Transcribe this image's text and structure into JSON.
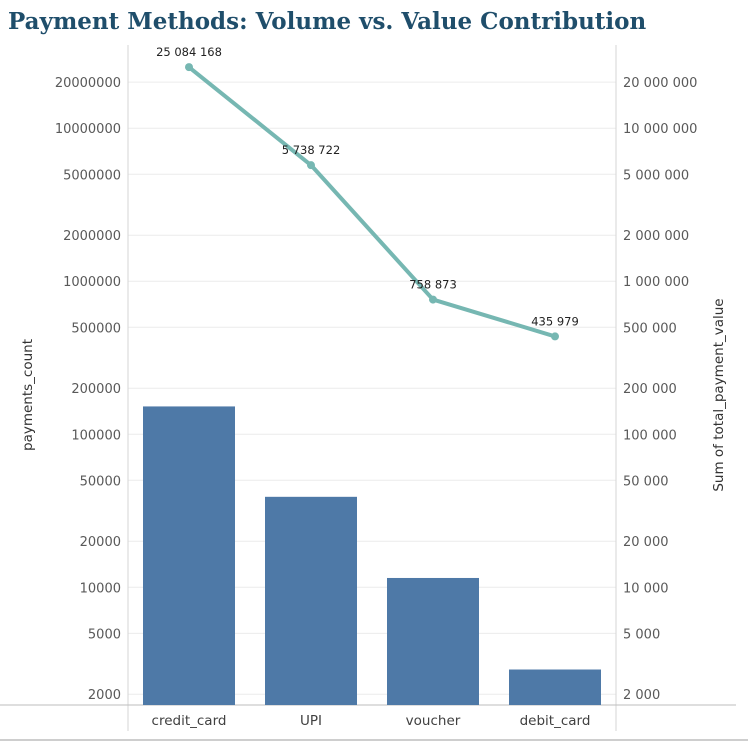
{
  "title": "Payment Methods: Volume vs. Value Contribution",
  "chart_data": {
    "type": "bar",
    "combo": "bar-line-dual-axis",
    "title": "Payment Methods: Volume vs. Value Contribution",
    "categories": [
      "credit_card",
      "UPI",
      "voucher",
      "debit_card"
    ],
    "y_scale": "log",
    "ylim": [
      1700,
      35000000
    ],
    "grid": true,
    "legend": "none",
    "series": [
      {
        "name": "payments_count",
        "type": "bar",
        "axis": "left",
        "color": "#4e79a7",
        "values": [
          152000,
          39000,
          11500,
          2900
        ]
      },
      {
        "name": "Sum of total_payment_value",
        "type": "line",
        "axis": "right",
        "color": "#76b7b2",
        "values": [
          25084168,
          5738722,
          758873,
          435979
        ],
        "data_labels": [
          "25 084 168",
          "5 738 722",
          "758 873",
          "435 979"
        ]
      }
    ],
    "left_axis": {
      "label": "payments_count",
      "ticks": [
        2000,
        5000,
        10000,
        20000,
        50000,
        100000,
        200000,
        500000,
        1000000,
        2000000,
        5000000,
        10000000,
        20000000
      ],
      "tick_labels": [
        "2000",
        "5000",
        "10000",
        "20000",
        "50000",
        "100000",
        "200000",
        "500000",
        "1000000",
        "2000000",
        "5000000",
        "10000000",
        "20000000"
      ]
    },
    "right_axis": {
      "label": "Sum of total_payment_value",
      "ticks": [
        2000,
        5000,
        10000,
        20000,
        50000,
        100000,
        200000,
        500000,
        1000000,
        2000000,
        5000000,
        10000000,
        20000000
      ],
      "tick_labels": [
        "2 000",
        "5 000",
        "10 000",
        "20 000",
        "50 000",
        "100 000",
        "200 000",
        "500 000",
        "1 000 000",
        "2 000 000",
        "5 000 000",
        "10 000 000",
        "20 000 000"
      ]
    }
  }
}
